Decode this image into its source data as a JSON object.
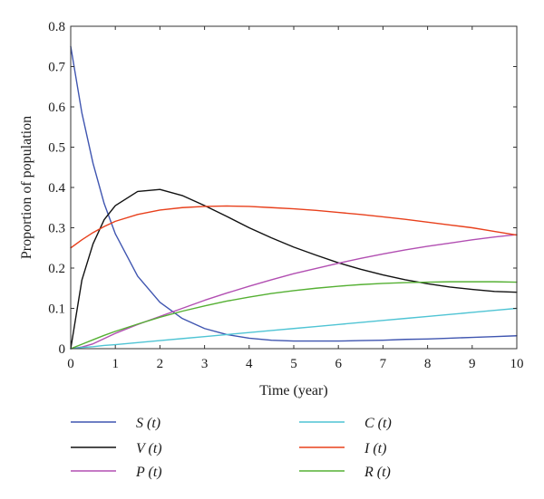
{
  "chart_data": {
    "type": "line",
    "title": "",
    "xlabel": "Time (year)",
    "ylabel": "Proportion of population",
    "xlim": [
      0,
      10
    ],
    "ylim": [
      0,
      0.8
    ],
    "x_ticks": [
      0,
      1,
      2,
      3,
      4,
      5,
      6,
      7,
      8,
      9,
      10
    ],
    "x_tick_labels": [
      "0",
      "1",
      "2",
      "3",
      "4",
      "5",
      "6",
      "7",
      "8",
      "9",
      "10"
    ],
    "y_ticks": [
      0,
      0.1,
      0.2,
      0.3,
      0.4,
      0.5,
      0.6,
      0.7,
      0.8
    ],
    "y_tick_labels": [
      "0",
      "0.1",
      "0.2",
      "0.3",
      "0.4",
      "0.5",
      "0.6",
      "0.7",
      "0.8"
    ],
    "grid": false,
    "legend_position": "bottom",
    "x": [
      0,
      0.25,
      0.5,
      0.75,
      1,
      1.5,
      2,
      2.5,
      3,
      3.5,
      4,
      4.5,
      5,
      5.5,
      6,
      6.5,
      7,
      7.5,
      8,
      8.5,
      9,
      9.5,
      10
    ],
    "series": [
      {
        "name": "S (t)",
        "color": "#3f55b0",
        "values": [
          0.75,
          0.585,
          0.46,
          0.36,
          0.285,
          0.18,
          0.115,
          0.075,
          0.05,
          0.035,
          0.026,
          0.021,
          0.019,
          0.019,
          0.019,
          0.02,
          0.021,
          0.023,
          0.024,
          0.026,
          0.028,
          0.03,
          0.032
        ]
      },
      {
        "name": "V (t)",
        "color": "#111111",
        "values": [
          0,
          0.17,
          0.26,
          0.32,
          0.355,
          0.39,
          0.395,
          0.38,
          0.355,
          0.328,
          0.3,
          0.275,
          0.252,
          0.232,
          0.213,
          0.197,
          0.183,
          0.171,
          0.161,
          0.153,
          0.147,
          0.142,
          0.14
        ]
      },
      {
        "name": "P (t)",
        "color": "#b24fb2",
        "values": [
          0,
          0.004,
          0.012,
          0.025,
          0.038,
          0.06,
          0.08,
          0.1,
          0.12,
          0.138,
          0.155,
          0.171,
          0.186,
          0.199,
          0.212,
          0.224,
          0.235,
          0.245,
          0.254,
          0.262,
          0.27,
          0.277,
          0.283
        ]
      },
      {
        "name": "C (t)",
        "color": "#4fc4d4",
        "values": [
          0,
          0.003,
          0.005,
          0.008,
          0.01,
          0.015,
          0.02,
          0.025,
          0.03,
          0.035,
          0.04,
          0.045,
          0.05,
          0.055,
          0.06,
          0.065,
          0.07,
          0.075,
          0.08,
          0.085,
          0.09,
          0.095,
          0.1
        ]
      },
      {
        "name": "I (t)",
        "color": "#e8401c",
        "values": [
          0.25,
          0.27,
          0.288,
          0.303,
          0.316,
          0.333,
          0.344,
          0.35,
          0.353,
          0.354,
          0.353,
          0.35,
          0.347,
          0.343,
          0.338,
          0.333,
          0.327,
          0.321,
          0.314,
          0.307,
          0.3,
          0.291,
          0.282
        ]
      },
      {
        "name": "R (t)",
        "color": "#55b033",
        "values": [
          0,
          0.011,
          0.022,
          0.033,
          0.043,
          0.061,
          0.078,
          0.093,
          0.106,
          0.118,
          0.128,
          0.137,
          0.144,
          0.15,
          0.155,
          0.159,
          0.162,
          0.164,
          0.165,
          0.166,
          0.166,
          0.166,
          0.165
        ]
      }
    ]
  }
}
